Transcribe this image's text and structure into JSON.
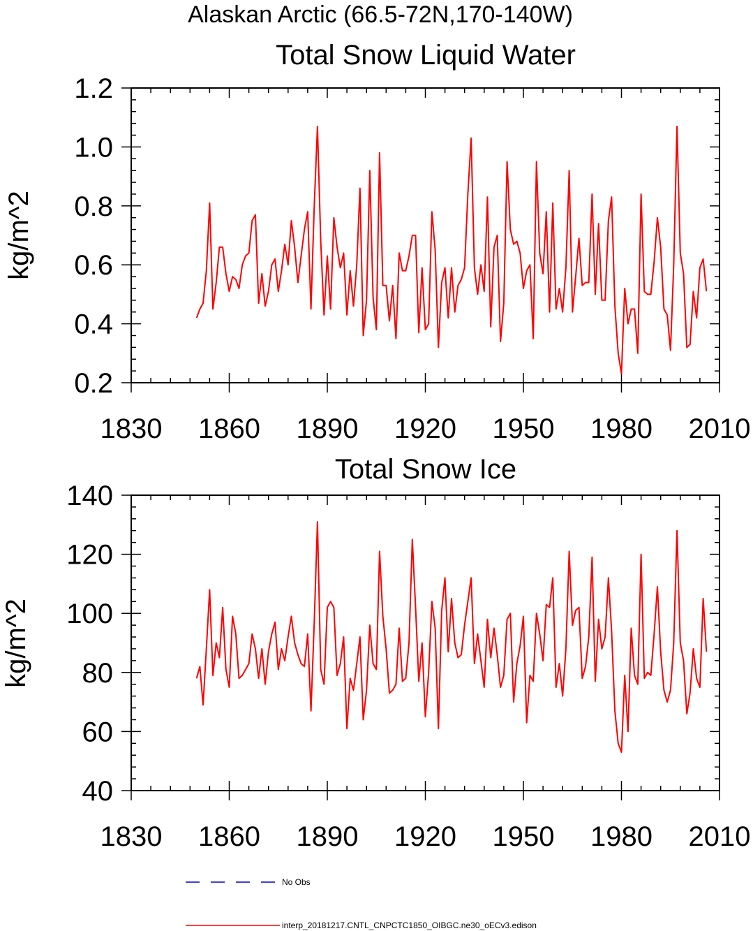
{
  "figure_title": "Alaskan Arctic (66.5-72N,170-140W)",
  "legend": {
    "entries": [
      {
        "label": "No Obs",
        "color": "#0000cc",
        "dash": true
      },
      {
        "label": "interp_20181217.CNTL_CNPCTC1850_OIBGC.ne30_oECv3.edison",
        "color": "#ff0000",
        "dash": false
      }
    ]
  },
  "chart_data": [
    {
      "type": "line",
      "title": "Total Snow Liquid Water",
      "xlabel": "",
      "ylabel": "kg/m^2",
      "xlim": [
        1830,
        2010
      ],
      "ylim": [
        0.2,
        1.2
      ],
      "xticks": [
        1830,
        1860,
        1890,
        1920,
        1950,
        1980,
        2010
      ],
      "yticks": [
        0.2,
        0.4,
        0.6,
        0.8,
        1.0,
        1.2
      ],
      "ytick_labels": [
        "0.2",
        "0.4",
        "0.6",
        "0.8",
        "1.0",
        "1.2"
      ],
      "series": [
        {
          "color": "#ff0000",
          "x": [
            1850,
            1851,
            1852,
            1853,
            1854,
            1855,
            1856,
            1857,
            1858,
            1859,
            1860,
            1861,
            1862,
            1863,
            1864,
            1865,
            1866,
            1867,
            1868,
            1869,
            1870,
            1871,
            1872,
            1873,
            1874,
            1875,
            1876,
            1877,
            1878,
            1879,
            1880,
            1881,
            1882,
            1883,
            1884,
            1885,
            1886,
            1887,
            1888,
            1889,
            1890,
            1891,
            1892,
            1893,
            1894,
            1895,
            1896,
            1897,
            1898,
            1899,
            1900,
            1901,
            1902,
            1903,
            1904,
            1905,
            1906,
            1907,
            1908,
            1909,
            1910,
            1911,
            1912,
            1913,
            1914,
            1915,
            1916,
            1917,
            1918,
            1919,
            1920,
            1921,
            1922,
            1923,
            1924,
            1925,
            1926,
            1927,
            1928,
            1929,
            1930,
            1931,
            1932,
            1933,
            1934,
            1935,
            1936,
            1937,
            1938,
            1939,
            1940,
            1941,
            1942,
            1943,
            1944,
            1945,
            1946,
            1947,
            1948,
            1949,
            1950,
            1951,
            1952,
            1953,
            1954,
            1955,
            1956,
            1957,
            1958,
            1959,
            1960,
            1961,
            1962,
            1963,
            1964,
            1965,
            1966,
            1967,
            1968,
            1969,
            1970,
            1971,
            1972,
            1973,
            1974,
            1975,
            1976,
            1977,
            1978,
            1979,
            1980,
            1981,
            1982,
            1983,
            1984,
            1985,
            1986,
            1987,
            1988,
            1989,
            1990,
            1991,
            1992,
            1993,
            1994,
            1995,
            1996,
            1997,
            1998,
            1999,
            2000,
            2001,
            2002,
            2003,
            2004,
            2005,
            2006
          ],
          "values": [
            0.42,
            0.45,
            0.47,
            0.58,
            0.81,
            0.45,
            0.54,
            0.66,
            0.66,
            0.57,
            0.51,
            0.56,
            0.55,
            0.52,
            0.6,
            0.63,
            0.64,
            0.75,
            0.77,
            0.47,
            0.57,
            0.46,
            0.51,
            0.6,
            0.62,
            0.51,
            0.58,
            0.67,
            0.6,
            0.75,
            0.66,
            0.54,
            0.63,
            0.72,
            0.78,
            0.45,
            0.8,
            1.07,
            0.68,
            0.43,
            0.63,
            0.45,
            0.76,
            0.66,
            0.59,
            0.64,
            0.43,
            0.58,
            0.46,
            0.6,
            0.86,
            0.36,
            0.48,
            0.92,
            0.49,
            0.38,
            0.98,
            0.53,
            0.53,
            0.41,
            0.53,
            0.35,
            0.64,
            0.58,
            0.58,
            0.63,
            0.7,
            0.7,
            0.37,
            0.59,
            0.38,
            0.4,
            0.78,
            0.65,
            0.32,
            0.54,
            0.59,
            0.42,
            0.59,
            0.44,
            0.53,
            0.55,
            0.59,
            0.84,
            1.03,
            0.59,
            0.5,
            0.6,
            0.51,
            0.83,
            0.39,
            0.66,
            0.7,
            0.34,
            0.47,
            0.95,
            0.72,
            0.67,
            0.68,
            0.64,
            0.52,
            0.58,
            0.6,
            0.35,
            0.95,
            0.64,
            0.57,
            0.78,
            0.44,
            0.81,
            0.45,
            0.52,
            0.44,
            0.59,
            0.92,
            0.44,
            0.56,
            0.69,
            0.53,
            0.54,
            0.54,
            0.84,
            0.5,
            0.74,
            0.48,
            0.48,
            0.75,
            0.83,
            0.46,
            0.3,
            0.23,
            0.52,
            0.4,
            0.45,
            0.45,
            0.3,
            0.84,
            0.51,
            0.5,
            0.5,
            0.61,
            0.76,
            0.66,
            0.45,
            0.43,
            0.31,
            0.6,
            1.07,
            0.64,
            0.57,
            0.32,
            0.33,
            0.51,
            0.42,
            0.59,
            0.62,
            0.51
          ]
        }
      ]
    },
    {
      "type": "line",
      "title": "Total Snow Ice",
      "xlabel": "",
      "ylabel": "kg/m^2",
      "xlim": [
        1830,
        2010
      ],
      "ylim": [
        40,
        140
      ],
      "xticks": [
        1830,
        1860,
        1890,
        1920,
        1950,
        1980,
        2010
      ],
      "yticks": [
        40,
        60,
        80,
        100,
        120,
        140
      ],
      "ytick_labels": [
        "40",
        "60",
        "80",
        "100",
        "120",
        "140"
      ],
      "series": [
        {
          "color": "#ff0000",
          "x": [
            1850,
            1851,
            1852,
            1853,
            1854,
            1855,
            1856,
            1857,
            1858,
            1859,
            1860,
            1861,
            1862,
            1863,
            1864,
            1865,
            1866,
            1867,
            1868,
            1869,
            1870,
            1871,
            1872,
            1873,
            1874,
            1875,
            1876,
            1877,
            1878,
            1879,
            1880,
            1881,
            1882,
            1883,
            1884,
            1885,
            1886,
            1887,
            1888,
            1889,
            1890,
            1891,
            1892,
            1893,
            1894,
            1895,
            1896,
            1897,
            1898,
            1899,
            1900,
            1901,
            1902,
            1903,
            1904,
            1905,
            1906,
            1907,
            1908,
            1909,
            1910,
            1911,
            1912,
            1913,
            1914,
            1915,
            1916,
            1917,
            1918,
            1919,
            1920,
            1921,
            1922,
            1923,
            1924,
            1925,
            1926,
            1927,
            1928,
            1929,
            1930,
            1931,
            1932,
            1933,
            1934,
            1935,
            1936,
            1937,
            1938,
            1939,
            1940,
            1941,
            1942,
            1943,
            1944,
            1945,
            1946,
            1947,
            1948,
            1949,
            1950,
            1951,
            1952,
            1953,
            1954,
            1955,
            1956,
            1957,
            1958,
            1959,
            1960,
            1961,
            1962,
            1963,
            1964,
            1965,
            1966,
            1967,
            1968,
            1969,
            1970,
            1971,
            1972,
            1973,
            1974,
            1975,
            1976,
            1977,
            1978,
            1979,
            1980,
            1981,
            1982,
            1983,
            1984,
            1985,
            1986,
            1987,
            1988,
            1989,
            1990,
            1991,
            1992,
            1993,
            1994,
            1995,
            1996,
            1997,
            1998,
            1999,
            2000,
            2001,
            2002,
            2003,
            2004,
            2005,
            2006
          ],
          "values": [
            78,
            82,
            69,
            88,
            108,
            79,
            90,
            85,
            102,
            81,
            75,
            99,
            93,
            78,
            79,
            81,
            83,
            93,
            88,
            78,
            88,
            76,
            87,
            93,
            97,
            81,
            88,
            84,
            92,
            99,
            90,
            86,
            83,
            82,
            93,
            67,
            97,
            131,
            81,
            76,
            102,
            104,
            102,
            79,
            83,
            92,
            61,
            78,
            74,
            83,
            92,
            64,
            74,
            96,
            83,
            81,
            121,
            99,
            88,
            73,
            74,
            76,
            95,
            77,
            78,
            90,
            125,
            102,
            77,
            90,
            65,
            80,
            104,
            95,
            61,
            101,
            112,
            87,
            105,
            90,
            85,
            86,
            96,
            104,
            112,
            83,
            93,
            84,
            75,
            98,
            85,
            95,
            86,
            75,
            79,
            98,
            100,
            70,
            83,
            89,
            99,
            63,
            79,
            77,
            100,
            93,
            84,
            103,
            102,
            112,
            75,
            83,
            72,
            88,
            121,
            96,
            101,
            102,
            78,
            82,
            92,
            119,
            77,
            98,
            88,
            92,
            112,
            94,
            67,
            56,
            53,
            79,
            60,
            95,
            79,
            76,
            120,
            78,
            80,
            79,
            93,
            109,
            87,
            74,
            70,
            74,
            90,
            128,
            90,
            84,
            66,
            73,
            88,
            78,
            75,
            105,
            87
          ]
        }
      ]
    }
  ]
}
